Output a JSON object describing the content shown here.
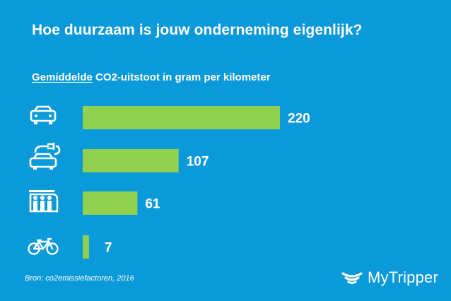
{
  "title": "Hoe duurzaam is jouw onderneming eigenlijk?",
  "subtitle_underlined": "Gemiddelde",
  "subtitle_rest": "CO2-uitstoot in gram per kilometer",
  "source": "Bron: co2emissiefactoren,  2016",
  "brand": "MyTripper",
  "colors": {
    "background": "#0b9ad9",
    "bar": "#92d050",
    "text": "#ffffff"
  },
  "chart_data": {
    "type": "bar",
    "orientation": "horizontal",
    "title": "Hoe duurzaam is jouw onderneming eigenlijk?",
    "subtitle": "Gemiddelde CO2-uitstoot in gram per kilometer",
    "categories": [
      "car-icon",
      "electric-car-icon",
      "train-icon",
      "bicycle-icon"
    ],
    "values": [
      220,
      107,
      61,
      7
    ],
    "value_labels": [
      "220",
      "107",
      "61",
      "7"
    ],
    "xlim": [
      0,
      220
    ],
    "grid": false,
    "legend": "none"
  }
}
